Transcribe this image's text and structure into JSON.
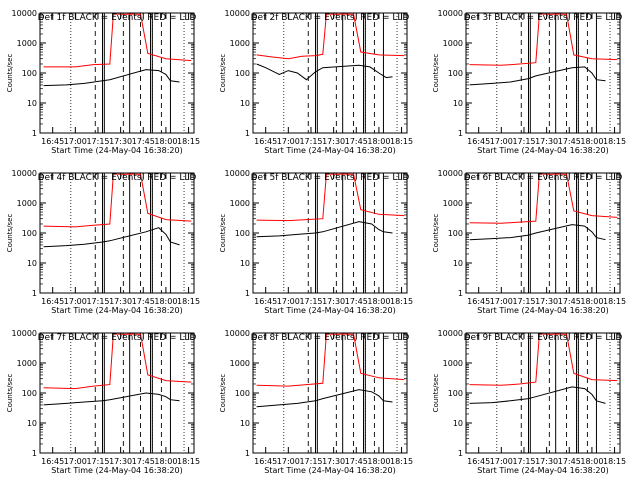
{
  "common": {
    "xlabel": "Start Time (24-May-04 16:38:20)",
    "ylabel": "Counts/sec",
    "x_ticks": [
      "16:45",
      "17:00",
      "17:15",
      "17:30",
      "17:45",
      "18:00",
      "18:15"
    ],
    "y_ticks": [
      "1",
      "10",
      "100",
      "1000",
      "10000"
    ],
    "legend_colors": {
      "events": "#000000",
      "lld": "#ff0000"
    }
  },
  "chart_data": [
    {
      "type": "line",
      "title": "Det 1f BLACK = Events, RED = LLD",
      "xlabel": "Start Time (24-May-04 16:38:20)",
      "ylabel": "Counts/sec",
      "ylim": [
        1,
        10000
      ],
      "yscale": "log",
      "series": [
        {
          "color": "#ff0000",
          "points": [
            [
              16.65,
              160
            ],
            [
              17.0,
              160
            ],
            [
              17.2,
              190
            ],
            [
              17.38,
              200
            ],
            [
              17.42,
              10000
            ],
            [
              17.55,
              9000
            ],
            [
              17.6,
              10000
            ],
            [
              17.72,
              9000
            ],
            [
              17.8,
              450
            ],
            [
              18.0,
              300
            ],
            [
              18.28,
              260
            ]
          ]
        },
        {
          "color": "#000000",
          "points": [
            [
              16.65,
              38
            ],
            [
              16.9,
              40
            ],
            [
              17.1,
              45
            ],
            [
              17.3,
              55
            ],
            [
              17.38,
              60
            ],
            [
              17.78,
              130
            ],
            [
              17.92,
              120
            ],
            [
              18.0,
              90
            ],
            [
              18.05,
              55
            ],
            [
              18.15,
              50
            ]
          ]
        }
      ]
    },
    {
      "type": "line",
      "title": "Det 2f BLACK = Events, RED = LLD",
      "xlabel": "Start Time (24-May-04 16:38:20)",
      "ylabel": "Counts/sec",
      "ylim": [
        1,
        10000
      ],
      "yscale": "log",
      "series": [
        {
          "color": "#ff0000",
          "points": [
            [
              16.65,
              400
            ],
            [
              16.8,
              350
            ],
            [
              17.0,
              300
            ],
            [
              17.15,
              360
            ],
            [
              17.3,
              380
            ],
            [
              17.38,
              420
            ],
            [
              17.42,
              10000
            ],
            [
              17.55,
              9000
            ],
            [
              17.6,
              10000
            ],
            [
              17.72,
              9000
            ],
            [
              17.8,
              500
            ],
            [
              18.0,
              400
            ],
            [
              18.28,
              380
            ]
          ]
        },
        {
          "color": "#000000",
          "points": [
            [
              16.65,
              200
            ],
            [
              16.75,
              150
            ],
            [
              16.9,
              90
            ],
            [
              17.0,
              120
            ],
            [
              17.1,
              100
            ],
            [
              17.2,
              60
            ],
            [
              17.3,
              110
            ],
            [
              17.38,
              150
            ],
            [
              17.78,
              180
            ],
            [
              17.9,
              160
            ],
            [
              18.0,
              100
            ],
            [
              18.08,
              70
            ],
            [
              18.15,
              75
            ]
          ]
        }
      ]
    },
    {
      "type": "line",
      "title": "Det 3f BLACK = Events, RED = LLD",
      "xlabel": "Start Time (24-May-04 16:38:20)",
      "ylabel": "Counts/sec",
      "ylim": [
        1,
        10000
      ],
      "yscale": "log",
      "series": [
        {
          "color": "#ff0000",
          "points": [
            [
              16.65,
              190
            ],
            [
              17.0,
              180
            ],
            [
              17.2,
              200
            ],
            [
              17.38,
              220
            ],
            [
              17.42,
              10000
            ],
            [
              17.55,
              9000
            ],
            [
              17.6,
              10000
            ],
            [
              17.72,
              9000
            ],
            [
              17.8,
              400
            ],
            [
              18.0,
              300
            ],
            [
              18.28,
              280
            ]
          ]
        },
        {
          "color": "#000000",
          "points": [
            [
              16.65,
              40
            ],
            [
              16.9,
              45
            ],
            [
              17.1,
              50
            ],
            [
              17.3,
              65
            ],
            [
              17.38,
              80
            ],
            [
              17.78,
              150
            ],
            [
              17.92,
              160
            ],
            [
              18.0,
              100
            ],
            [
              18.05,
              60
            ],
            [
              18.15,
              55
            ]
          ]
        }
      ]
    },
    {
      "type": "line",
      "title": "Det 4f BLACK = Events, RED = LLD",
      "xlabel": "Start Time (24-May-04 16:38:20)",
      "ylabel": "Counts/sec",
      "ylim": [
        1,
        10000
      ],
      "yscale": "log",
      "series": [
        {
          "color": "#ff0000",
          "points": [
            [
              16.65,
              170
            ],
            [
              17.0,
              160
            ],
            [
              17.2,
              180
            ],
            [
              17.38,
              200
            ],
            [
              17.42,
              10000
            ],
            [
              17.55,
              9000
            ],
            [
              17.6,
              10000
            ],
            [
              17.72,
              9000
            ],
            [
              17.8,
              450
            ],
            [
              18.0,
              280
            ],
            [
              18.28,
              250
            ]
          ]
        },
        {
          "color": "#000000",
          "points": [
            [
              16.65,
              35
            ],
            [
              16.9,
              38
            ],
            [
              17.1,
              42
            ],
            [
              17.3,
              50
            ],
            [
              17.38,
              55
            ],
            [
              17.78,
              110
            ],
            [
              17.92,
              150
            ],
            [
              18.0,
              90
            ],
            [
              18.05,
              50
            ],
            [
              18.15,
              40
            ]
          ]
        }
      ]
    },
    {
      "type": "line",
      "title": "Det 5f BLACK = Events, RED = LLD",
      "xlabel": "Start Time (24-May-04 16:38:20)",
      "ylabel": "Counts/sec",
      "ylim": [
        1,
        10000
      ],
      "yscale": "log",
      "series": [
        {
          "color": "#ff0000",
          "points": [
            [
              16.65,
              270
            ],
            [
              17.0,
              260
            ],
            [
              17.2,
              280
            ],
            [
              17.38,
              300
            ],
            [
              17.42,
              10000
            ],
            [
              17.55,
              9000
            ],
            [
              17.6,
              10000
            ],
            [
              17.72,
              9000
            ],
            [
              17.8,
              600
            ],
            [
              18.0,
              420
            ],
            [
              18.28,
              380
            ]
          ]
        },
        {
          "color": "#000000",
          "points": [
            [
              16.65,
              75
            ],
            [
              16.9,
              80
            ],
            [
              17.1,
              90
            ],
            [
              17.3,
              100
            ],
            [
              17.38,
              110
            ],
            [
              17.78,
              240
            ],
            [
              17.92,
              200
            ],
            [
              18.0,
              130
            ],
            [
              18.05,
              110
            ],
            [
              18.15,
              100
            ]
          ]
        }
      ]
    },
    {
      "type": "line",
      "title": "Det 6f BLACK = Events, RED = LLD",
      "xlabel": "Start Time (24-May-04 16:38:20)",
      "ylabel": "Counts/sec",
      "ylim": [
        1,
        10000
      ],
      "yscale": "log",
      "series": [
        {
          "color": "#ff0000",
          "points": [
            [
              16.65,
              220
            ],
            [
              17.0,
              210
            ],
            [
              17.2,
              230
            ],
            [
              17.38,
              250
            ],
            [
              17.42,
              10000
            ],
            [
              17.55,
              9000
            ],
            [
              17.6,
              10000
            ],
            [
              17.72,
              9000
            ],
            [
              17.8,
              550
            ],
            [
              18.0,
              380
            ],
            [
              18.28,
              330
            ]
          ]
        },
        {
          "color": "#000000",
          "points": [
            [
              16.65,
              60
            ],
            [
              16.9,
              65
            ],
            [
              17.1,
              70
            ],
            [
              17.3,
              85
            ],
            [
              17.38,
              100
            ],
            [
              17.78,
              190
            ],
            [
              17.92,
              170
            ],
            [
              18.0,
              110
            ],
            [
              18.05,
              70
            ],
            [
              18.15,
              60
            ]
          ]
        }
      ]
    },
    {
      "type": "line",
      "title": "Det 7f BLACK = Events, RED = LLD",
      "xlabel": "Start Time (24-May-04 16:38:20)",
      "ylabel": "Counts/sec",
      "ylim": [
        1,
        10000
      ],
      "yscale": "log",
      "series": [
        {
          "color": "#ff0000",
          "points": [
            [
              16.65,
              150
            ],
            [
              17.0,
              140
            ],
            [
              17.2,
              170
            ],
            [
              17.38,
              190
            ],
            [
              17.42,
              10000
            ],
            [
              17.55,
              9000
            ],
            [
              17.6,
              10000
            ],
            [
              17.72,
              9000
            ],
            [
              17.8,
              400
            ],
            [
              18.0,
              260
            ],
            [
              18.28,
              230
            ]
          ]
        },
        {
          "color": "#000000",
          "points": [
            [
              16.65,
              40
            ],
            [
              16.9,
              45
            ],
            [
              17.1,
              50
            ],
            [
              17.3,
              55
            ],
            [
              17.38,
              60
            ],
            [
              17.78,
              100
            ],
            [
              17.92,
              90
            ],
            [
              18.0,
              75
            ],
            [
              18.05,
              60
            ],
            [
              18.15,
              55
            ]
          ]
        }
      ]
    },
    {
      "type": "line",
      "title": "Det 8f BLACK = Events, RED = LLD",
      "xlabel": "Start Time (24-May-04 16:38:20)",
      "ylabel": "Counts/sec",
      "ylim": [
        1,
        10000
      ],
      "yscale": "log",
      "series": [
        {
          "color": "#ff0000",
          "points": [
            [
              16.65,
              180
            ],
            [
              17.0,
              170
            ],
            [
              17.2,
              190
            ],
            [
              17.38,
              210
            ],
            [
              17.42,
              10000
            ],
            [
              17.55,
              9000
            ],
            [
              17.6,
              10000
            ],
            [
              17.72,
              9000
            ],
            [
              17.8,
              450
            ],
            [
              18.0,
              320
            ],
            [
              18.28,
              280
            ]
          ]
        },
        {
          "color": "#000000",
          "points": [
            [
              16.65,
              35
            ],
            [
              16.9,
              40
            ],
            [
              17.1,
              45
            ],
            [
              17.3,
              55
            ],
            [
              17.38,
              65
            ],
            [
              17.78,
              130
            ],
            [
              17.92,
              110
            ],
            [
              18.0,
              80
            ],
            [
              18.05,
              55
            ],
            [
              18.15,
              50
            ]
          ]
        }
      ]
    },
    {
      "type": "line",
      "title": "Det 9f BLACK = Events, RED = LLD",
      "xlabel": "Start Time (24-May-04 16:38:20)",
      "ylabel": "Counts/sec",
      "ylim": [
        1,
        10000
      ],
      "yscale": "log",
      "series": [
        {
          "color": "#ff0000",
          "points": [
            [
              16.65,
              190
            ],
            [
              17.0,
              180
            ],
            [
              17.2,
              200
            ],
            [
              17.38,
              230
            ],
            [
              17.42,
              10000
            ],
            [
              17.55,
              9000
            ],
            [
              17.6,
              10000
            ],
            [
              17.72,
              9000
            ],
            [
              17.8,
              450
            ],
            [
              18.0,
              280
            ],
            [
              18.28,
              260
            ]
          ]
        },
        {
          "color": "#000000",
          "points": [
            [
              16.65,
              45
            ],
            [
              16.9,
              48
            ],
            [
              17.1,
              55
            ],
            [
              17.3,
              65
            ],
            [
              17.38,
              75
            ],
            [
              17.78,
              160
            ],
            [
              17.92,
              140
            ],
            [
              18.0,
              90
            ],
            [
              18.05,
              55
            ],
            [
              18.15,
              45
            ]
          ]
        }
      ]
    }
  ]
}
